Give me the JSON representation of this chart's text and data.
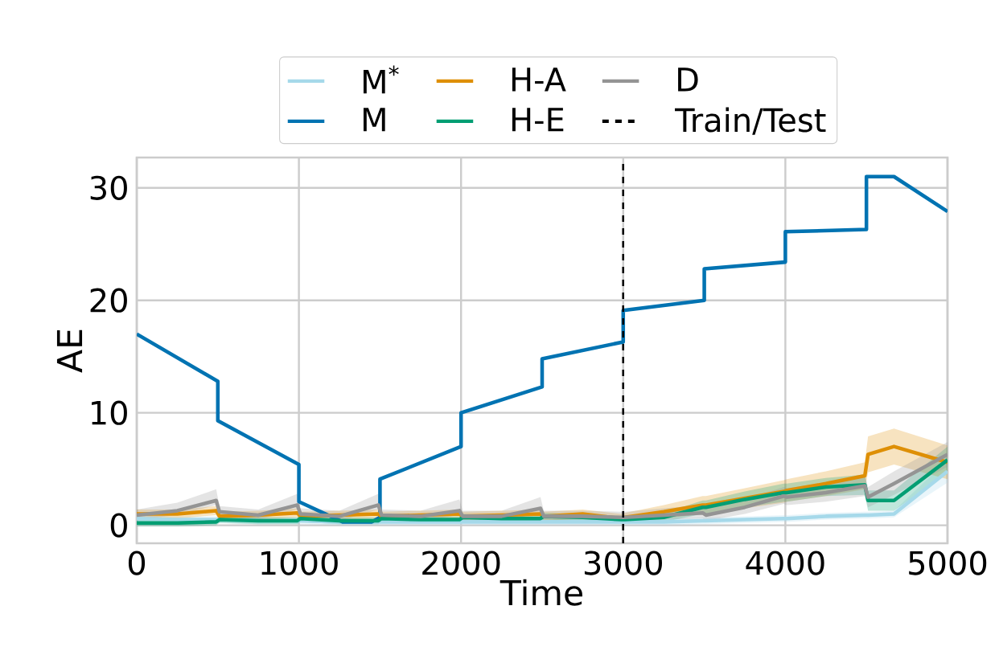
{
  "chart_data": {
    "type": "line",
    "xlabel": "Time",
    "ylabel": "AE",
    "xlim": [
      0,
      5000
    ],
    "ylim": [
      -1.6,
      32.7
    ],
    "xticks": [
      0,
      1000,
      2000,
      3000,
      4000,
      5000
    ],
    "yticks": [
      0,
      10,
      20,
      30
    ],
    "grid": true,
    "legend": "top",
    "line_style": "solid",
    "ref_lines": [
      {
        "axis": "x",
        "value": 3000,
        "label": "Train/Test",
        "color": "#000000",
        "line_style": "dashed"
      }
    ],
    "series": [
      {
        "name": "M$^{*}$",
        "color": "#a6d9ea",
        "x": [
          0,
          250,
          490,
          510,
          750,
          990,
          1010,
          1250,
          1490,
          1510,
          1750,
          1990,
          2010,
          2250,
          2490,
          2510,
          2750,
          2990,
          3010,
          3250,
          3490,
          3510,
          3750,
          3990,
          4010,
          4250,
          4490,
          4510,
          4670,
          5000
        ],
        "values": [
          0.6,
          0.5,
          0.5,
          0.5,
          0.4,
          0.4,
          0.4,
          0.3,
          0.3,
          0.3,
          0.3,
          0.3,
          0.3,
          0.3,
          0.3,
          0.3,
          0.3,
          0.3,
          0.3,
          0.3,
          0.4,
          0.4,
          0.5,
          0.6,
          0.6,
          0.8,
          0.9,
          0.9,
          1.0,
          4.8
        ],
        "lower": [
          0.3,
          0.2,
          0.2,
          0.2,
          0.1,
          0.1,
          0.1,
          0.0,
          0.0,
          0.0,
          0.0,
          0.0,
          0.0,
          0.0,
          0.0,
          0.0,
          0.0,
          0.0,
          0.0,
          0.0,
          0.1,
          0.1,
          0.2,
          0.3,
          0.3,
          0.5,
          0.6,
          0.6,
          0.7,
          3.8
        ],
        "upper": [
          0.9,
          0.8,
          0.8,
          0.8,
          0.7,
          0.7,
          0.7,
          0.6,
          0.6,
          0.6,
          0.6,
          0.6,
          0.6,
          0.6,
          0.6,
          0.6,
          0.6,
          0.6,
          0.6,
          0.6,
          0.7,
          0.7,
          0.8,
          0.9,
          0.9,
          1.1,
          1.2,
          1.2,
          1.3,
          5.8
        ]
      },
      {
        "name": "M",
        "color": "#0173b2",
        "x": [
          0,
          500,
          500,
          1000,
          1000,
          1270,
          1450,
          1500,
          1500,
          2000,
          2000,
          2500,
          2500,
          3000,
          3000,
          3500,
          3500,
          4000,
          4000,
          4500,
          4500,
          4670,
          5000
        ],
        "values": [
          17,
          12.8,
          9.3,
          5.4,
          2.1,
          0.3,
          0.3,
          0.7,
          4.1,
          7.0,
          10.0,
          12.3,
          14.8,
          16.3,
          19.1,
          20.0,
          22.8,
          23.4,
          26.1,
          26.3,
          31.0,
          31.0,
          27.9
        ]
      },
      {
        "name": "H-A",
        "color": "#de8f05",
        "x": [
          0,
          250,
          490,
          510,
          750,
          990,
          1010,
          1250,
          1490,
          1510,
          1750,
          1990,
          2010,
          2250,
          2490,
          2510,
          2750,
          2990,
          3010,
          3250,
          3490,
          3510,
          3750,
          3990,
          4010,
          4250,
          4490,
          4510,
          4670,
          5000
        ],
        "values": [
          1.0,
          1.0,
          1.3,
          0.8,
          0.9,
          1.1,
          0.8,
          0.9,
          1.0,
          0.8,
          0.9,
          1.0,
          0.8,
          0.9,
          1.0,
          0.8,
          1.0,
          0.6,
          0.7,
          1.2,
          1.8,
          1.8,
          2.4,
          3.0,
          3.1,
          3.7,
          4.4,
          6.3,
          7.0,
          5.6
        ],
        "lower": [
          0.6,
          0.6,
          0.9,
          0.4,
          0.5,
          0.7,
          0.4,
          0.5,
          0.6,
          0.4,
          0.5,
          0.6,
          0.4,
          0.5,
          0.6,
          0.4,
          0.6,
          0.2,
          0.3,
          0.6,
          1.0,
          1.0,
          1.5,
          2.0,
          2.1,
          2.6,
          3.2,
          4.7,
          5.4,
          4.1
        ],
        "upper": [
          1.4,
          1.4,
          1.7,
          1.2,
          1.3,
          1.5,
          1.2,
          1.3,
          1.4,
          1.2,
          1.3,
          1.4,
          1.2,
          1.3,
          1.4,
          1.2,
          1.4,
          1.0,
          1.1,
          1.8,
          2.6,
          2.6,
          3.3,
          4.0,
          4.1,
          4.8,
          5.6,
          7.9,
          8.6,
          7.1
        ]
      },
      {
        "name": "H-E",
        "color": "#029e73",
        "x": [
          0,
          250,
          490,
          510,
          750,
          990,
          1010,
          1250,
          1490,
          1510,
          1750,
          1990,
          2010,
          2250,
          2490,
          2510,
          2750,
          2990,
          3010,
          3250,
          3490,
          3510,
          3750,
          3990,
          4010,
          4250,
          4490,
          4510,
          4670,
          5000
        ],
        "values": [
          0.2,
          0.2,
          0.3,
          0.5,
          0.4,
          0.4,
          0.6,
          0.4,
          0.4,
          0.6,
          0.5,
          0.5,
          0.7,
          0.6,
          0.6,
          0.8,
          0.7,
          0.5,
          0.5,
          0.7,
          1.6,
          1.6,
          2.3,
          2.9,
          2.9,
          3.4,
          3.6,
          2.2,
          2.2,
          5.8
        ],
        "lower": [
          -0.1,
          -0.1,
          0.0,
          0.2,
          0.1,
          0.1,
          0.3,
          0.1,
          0.1,
          0.3,
          0.2,
          0.2,
          0.4,
          0.3,
          0.3,
          0.5,
          0.4,
          0.2,
          0.2,
          0.3,
          1.0,
          1.0,
          1.6,
          2.1,
          2.1,
          2.6,
          2.7,
          1.3,
          1.3,
          4.6
        ],
        "upper": [
          0.5,
          0.5,
          0.6,
          0.8,
          0.7,
          0.7,
          0.9,
          0.7,
          0.7,
          0.9,
          0.8,
          0.8,
          1.0,
          0.9,
          0.9,
          1.1,
          1.0,
          0.8,
          0.8,
          1.1,
          2.2,
          2.2,
          3.0,
          3.7,
          3.7,
          4.2,
          4.5,
          3.1,
          3.1,
          7.0
        ]
      },
      {
        "name": "D",
        "color": "#949494",
        "x": [
          0,
          250,
          490,
          510,
          750,
          990,
          1010,
          1250,
          1490,
          1510,
          1750,
          1990,
          2010,
          2250,
          2490,
          2510,
          2750,
          2990,
          3010,
          3250,
          3490,
          3510,
          3750,
          3990,
          4010,
          4250,
          4490,
          4510,
          4670,
          5000
        ],
        "values": [
          0.9,
          1.3,
          2.2,
          1.2,
          0.9,
          1.8,
          1.0,
          0.8,
          1.8,
          0.9,
          0.8,
          1.3,
          0.8,
          0.8,
          1.5,
          0.8,
          0.8,
          0.7,
          0.7,
          0.9,
          1.1,
          0.9,
          1.6,
          2.6,
          2.5,
          2.9,
          3.5,
          2.5,
          3.7,
          6.3
        ],
        "lower": [
          0.5,
          0.9,
          1.8,
          0.8,
          0.5,
          1.4,
          0.6,
          0.4,
          1.4,
          0.5,
          0.4,
          0.9,
          0.4,
          0.4,
          1.1,
          0.4,
          0.4,
          0.3,
          0.3,
          0.5,
          0.6,
          0.4,
          1.0,
          1.9,
          1.8,
          2.1,
          2.6,
          1.6,
          2.7,
          5.2
        ],
        "upper": [
          1.4,
          2.0,
          3.2,
          1.7,
          1.4,
          2.8,
          1.5,
          1.3,
          2.8,
          1.4,
          1.3,
          2.3,
          1.3,
          1.3,
          2.5,
          1.3,
          1.3,
          1.2,
          1.2,
          1.5,
          1.8,
          1.5,
          2.3,
          3.4,
          3.3,
          3.8,
          4.5,
          3.4,
          4.8,
          7.4
        ]
      }
    ]
  }
}
